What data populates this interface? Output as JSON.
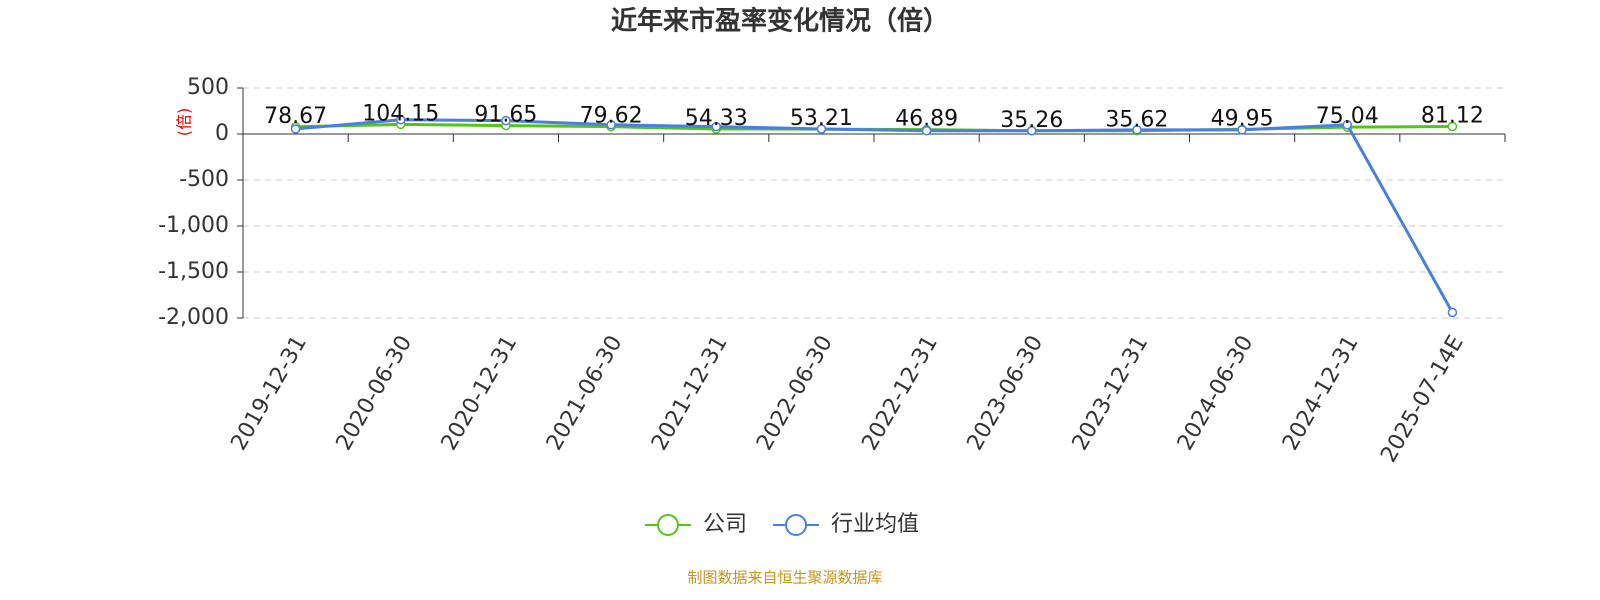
{
  "chart_data": {
    "type": "line",
    "title": "近年来市盈率变化情况（倍）",
    "y_label": "(倍)",
    "source": "制图数据来自恒生聚源数据库",
    "categories": [
      "2019-12-31",
      "2020-06-30",
      "2020-12-31",
      "2021-06-30",
      "2021-12-31",
      "2022-06-30",
      "2022-12-31",
      "2023-06-30",
      "2023-12-31",
      "2024-06-30",
      "2024-12-31",
      "2025-07-14E"
    ],
    "series": [
      {
        "name": "公司",
        "color": "#52c41a",
        "values": [
          78.67,
          104.15,
          91.65,
          79.62,
          54.33,
          53.21,
          46.89,
          35.26,
          35.62,
          49.95,
          75.04,
          81.12
        ]
      },
      {
        "name": "行业均值",
        "color": "#4a7fe0",
        "values": [
          55,
          155,
          145,
          100,
          80,
          55,
          35,
          35,
          45,
          45,
          100,
          -1940
        ]
      }
    ],
    "ylim": [
      -2000,
      500
    ],
    "yticks": [
      500,
      0,
      -500,
      {
        "value": -1000,
        "label": "-1,000"
      },
      {
        "value": -1500,
        "label": "-1,500"
      },
      {
        "value": -2000,
        "label": "-2,000"
      }
    ],
    "grid": true,
    "legend": "bottom"
  }
}
